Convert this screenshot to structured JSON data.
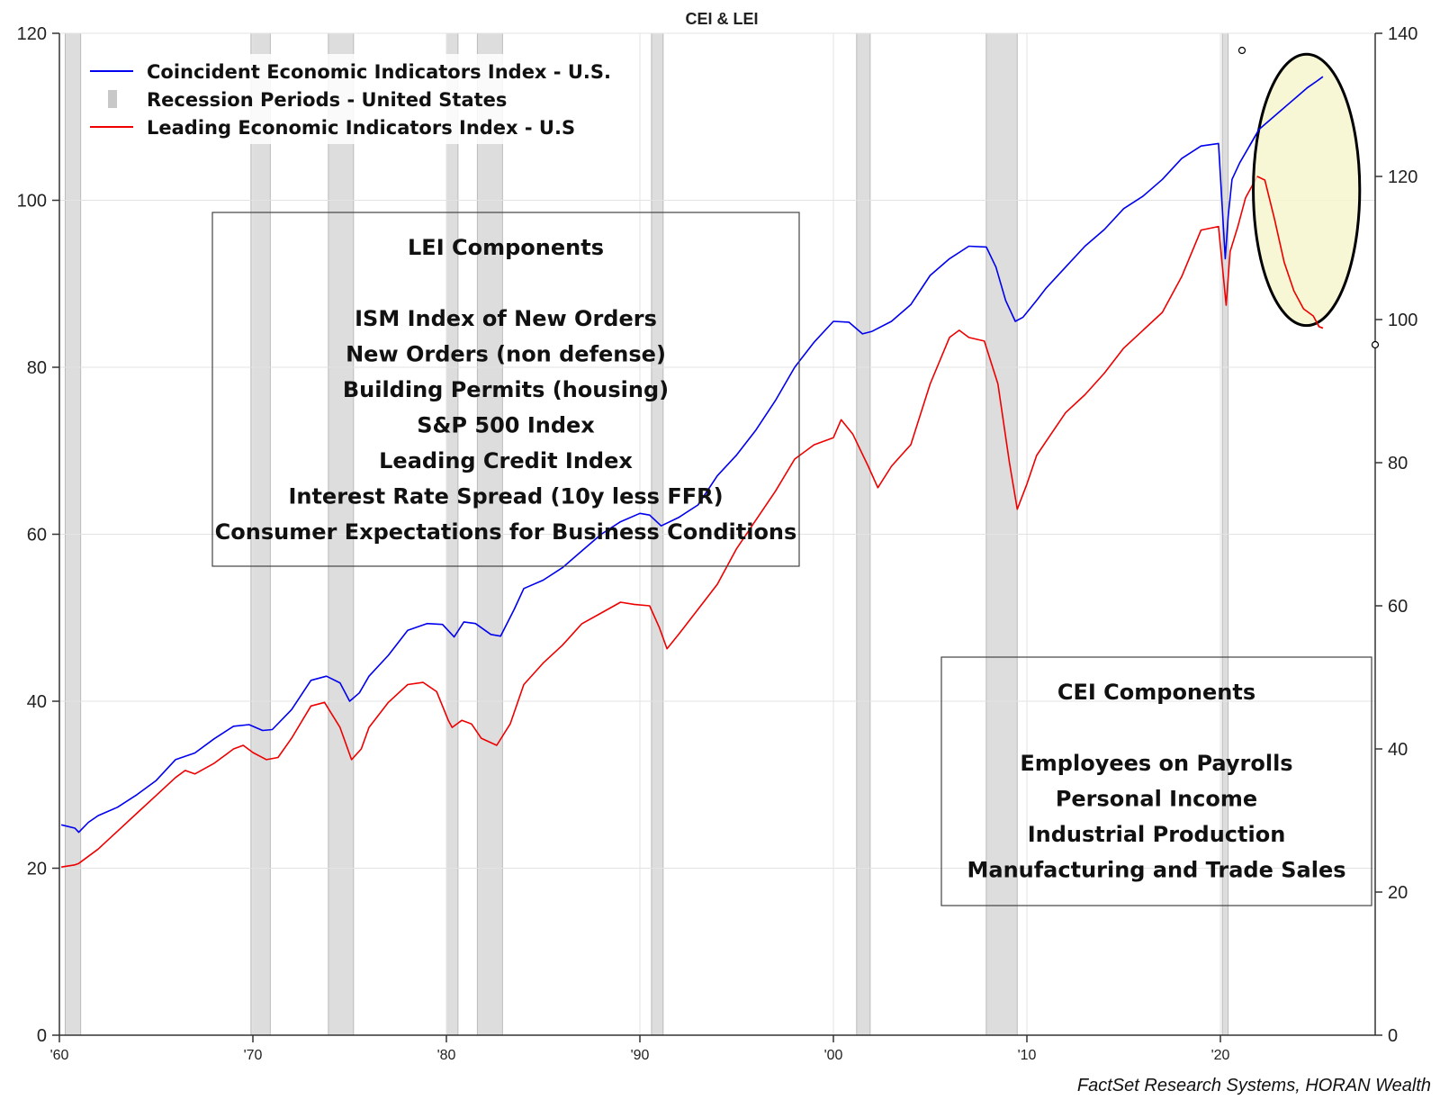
{
  "chart_data": {
    "type": "line",
    "title": "CEI & LEI",
    "source": "FactSet Research Systems, HORAN Wealth",
    "x_range": [
      1960,
      2028
    ],
    "x_ticks": [
      {
        "year": 1960,
        "label": "'60"
      },
      {
        "year": 1970,
        "label": "'70"
      },
      {
        "year": 1980,
        "label": "'80"
      },
      {
        "year": 1990,
        "label": "'90"
      },
      {
        "year": 2000,
        "label": "'00"
      },
      {
        "year": 2010,
        "label": "'10"
      },
      {
        "year": 2020,
        "label": "'20"
      }
    ],
    "y_left": {
      "range": [
        0,
        120
      ],
      "ticks": [
        0,
        20,
        40,
        60,
        80,
        100,
        120
      ]
    },
    "y_right": {
      "range": [
        0,
        140
      ],
      "ticks": [
        0,
        20,
        40,
        60,
        80,
        100,
        120,
        140
      ]
    },
    "legend": {
      "position": "top-left",
      "items": [
        {
          "label": "Coincident Economic Indicators Index - U.S.",
          "kind": "line",
          "color": "#0000ee"
        },
        {
          "label": "Recession Periods - United States",
          "kind": "bar",
          "color": "#c8c8c8"
        },
        {
          "label": "Leading Economic Indicators Index - U.S",
          "kind": "line",
          "color": "#ee0000"
        }
      ]
    },
    "recessions": [
      [
        1960.3,
        1961.1
      ],
      [
        1969.9,
        1970.9
      ],
      [
        1973.9,
        1975.2
      ],
      [
        1980.0,
        1980.6
      ],
      [
        1981.6,
        1982.9
      ],
      [
        1990.6,
        1991.2
      ],
      [
        2001.2,
        2001.9
      ],
      [
        2007.9,
        2009.5
      ],
      [
        2020.1,
        2020.4
      ]
    ],
    "series": [
      {
        "name": "Coincident Economic Indicators Index - U.S.",
        "axis": "left",
        "color": "#0000ee",
        "x": [
          1960.1,
          1960.8,
          1961.0,
          1961.5,
          1962,
          1963,
          1964,
          1965,
          1966,
          1967,
          1968,
          1969,
          1969.8,
          1970.5,
          1971,
          1972,
          1973,
          1973.8,
          1974.5,
          1975.0,
          1975.5,
          1976,
          1977,
          1978,
          1979,
          1979.8,
          1980.4,
          1980.9,
          1981.5,
          1982.3,
          1982.8,
          1983.5,
          1984,
          1985,
          1986,
          1987,
          1988,
          1989,
          1990,
          1990.5,
          1991.1,
          1992,
          1993,
          1994,
          1995,
          1996,
          1997,
          1998,
          1999,
          2000,
          2000.8,
          2001.5,
          2002,
          2003,
          2004,
          2005,
          2006,
          2007,
          2007.9,
          2008.4,
          2008.9,
          2009.4,
          2009.8,
          2010.5,
          2011,
          2012,
          2013,
          2014,
          2015,
          2016,
          2017,
          2018,
          2019,
          2019.9,
          2020.25,
          2020.4,
          2020.6,
          2021,
          2021.5,
          2022,
          2022.5,
          2023,
          2023.5,
          2024,
          2024.5,
          2025.0,
          2025.3
        ],
        "values": [
          25.2,
          24.8,
          24.3,
          25.5,
          26.3,
          27.3,
          28.8,
          30.5,
          33.0,
          33.8,
          35.5,
          37.0,
          37.2,
          36.5,
          36.6,
          39.0,
          42.5,
          43.0,
          42.2,
          40.0,
          41.0,
          43.0,
          45.5,
          48.5,
          49.3,
          49.2,
          47.7,
          49.5,
          49.3,
          48.0,
          47.8,
          51.0,
          53.5,
          54.5,
          56.0,
          58.0,
          60.0,
          61.5,
          62.5,
          62.3,
          61.0,
          62.0,
          63.5,
          67.0,
          69.5,
          72.5,
          76.0,
          80.0,
          83.0,
          85.5,
          85.4,
          84.0,
          84.3,
          85.5,
          87.5,
          91.0,
          93.0,
          94.5,
          94.4,
          92.0,
          88.0,
          85.5,
          86.0,
          88.0,
          89.5,
          92.0,
          94.5,
          96.5,
          99.0,
          100.5,
          102.5,
          105.0,
          106.5,
          106.8,
          93.0,
          98.0,
          102.5,
          104.5,
          106.5,
          108.5,
          109.5,
          110.5,
          111.5,
          112.5,
          113.5,
          114.3,
          114.8
        ]
      },
      {
        "name": "Leading Economic Indicators Index - U.S",
        "axis": "right",
        "color": "#ee0000",
        "x": [
          1960.1,
          1960.8,
          1961.0,
          1962,
          1963,
          1964,
          1965,
          1966,
          1966.5,
          1967,
          1968,
          1969,
          1969.5,
          1970.0,
          1970.7,
          1971.3,
          1972,
          1973.0,
          1973.7,
          1974.5,
          1975.1,
          1975.6,
          1976,
          1977,
          1978,
          1978.8,
          1979.5,
          1980.1,
          1980.3,
          1980.8,
          1981.3,
          1981.8,
          1982.6,
          1983.3,
          1984,
          1985,
          1986,
          1987,
          1988,
          1989,
          1989.7,
          1990.5,
          1991.0,
          1991.4,
          1992,
          1993,
          1994,
          1995,
          1996,
          1997,
          1998,
          1999,
          2000.0,
          2000.4,
          2001.0,
          2001.8,
          2002.3,
          2003,
          2003.5,
          2004,
          2005,
          2006,
          2006.5,
          2007,
          2007.8,
          2008.5,
          2009.1,
          2009.5,
          2010,
          2010.5,
          2011,
          2012,
          2013,
          2014,
          2015,
          2016,
          2017,
          2018,
          2019,
          2019.9,
          2020.3,
          2020.5,
          2020.9,
          2021.3,
          2021.9,
          2022.3,
          2022.8,
          2023.3,
          2023.8,
          2024.3,
          2024.8,
          2025.1,
          2025.3
        ],
        "values": [
          23.5,
          23.8,
          24.0,
          26.0,
          28.5,
          31.0,
          33.5,
          36.0,
          37.0,
          36.5,
          38.0,
          40.0,
          40.5,
          39.5,
          38.5,
          38.8,
          41.5,
          46.0,
          46.5,
          43.0,
          38.5,
          40.0,
          43.0,
          46.5,
          49.0,
          49.3,
          48.0,
          44.0,
          43.0,
          44.0,
          43.5,
          41.5,
          40.5,
          43.5,
          49.0,
          52.0,
          54.5,
          57.5,
          59.0,
          60.5,
          60.2,
          60.0,
          57.0,
          54.0,
          56.0,
          59.5,
          63.0,
          68.0,
          72.0,
          76.0,
          80.5,
          82.5,
          83.5,
          86.0,
          84.0,
          79.5,
          76.5,
          79.5,
          81.0,
          82.5,
          91.0,
          97.5,
          98.5,
          97.5,
          97.0,
          91.0,
          80.0,
          73.5,
          77.0,
          81.0,
          83.0,
          87.0,
          89.5,
          92.5,
          96.0,
          98.5,
          101.0,
          106.0,
          112.5,
          113.0,
          102.0,
          109.5,
          113.0,
          117.0,
          120.0,
          119.5,
          114.0,
          108.0,
          104.0,
          101.5,
          100.5,
          99.0,
          98.8
        ]
      }
    ],
    "lei_components": {
      "title": "LEI Components",
      "items": [
        "ISM Index of New Orders",
        "New Orders (non defense)",
        "Building Permits (housing)",
        "S&P 500 Index",
        "Leading Credit Index",
        "Interest Rate Spread (10y less FFR)",
        "Consumer Expectations for Business Conditions"
      ]
    },
    "cei_components": {
      "title": "CEI Components",
      "items": [
        "Employees on Payrolls",
        "Personal Income",
        "Industrial Production",
        "Manufacturing and Trade Sales"
      ]
    },
    "highlight": {
      "fill": "#f5f5cc",
      "stroke": "#000000",
      "x_range": [
        2021.7,
        2027.2
      ],
      "y_left_range": [
        85.0,
        117.5
      ]
    }
  }
}
